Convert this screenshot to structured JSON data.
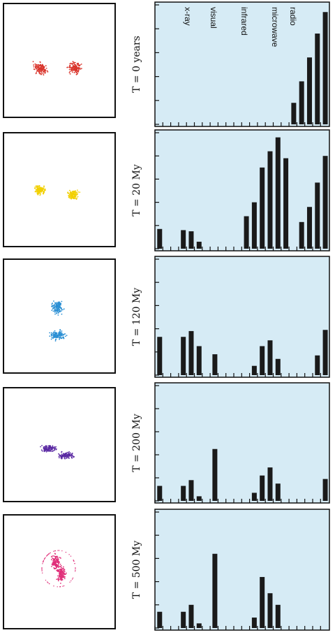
{
  "chart_data": [
    {
      "type": "bar",
      "title": "T = 0 years",
      "band_labels": [
        "x-ray",
        "visual",
        "infrared",
        "microwave",
        "radio"
      ],
      "categories": [
        null,
        null,
        null,
        null,
        null,
        null,
        null,
        null,
        null,
        null,
        null,
        null,
        null,
        null,
        null,
        null,
        null,
        null,
        null,
        null,
        null,
        null
      ],
      "values": [
        0,
        0,
        0,
        0,
        0,
        0,
        0,
        0,
        0,
        0,
        0,
        0,
        0,
        0,
        0,
        0,
        0,
        0.9,
        1.8,
        2.8,
        3.8,
        4.7
      ],
      "color": "#1a1a1a",
      "ylim": [
        0,
        5
      ],
      "yticks": [
        0,
        1,
        2,
        3,
        4,
        5
      ]
    },
    {
      "type": "bar",
      "title": "T = 20 My",
      "categories": [
        null,
        null,
        null,
        null,
        null,
        null,
        null,
        null,
        null,
        null,
        null,
        null,
        null,
        null,
        null,
        null,
        null,
        null,
        null,
        null,
        null,
        null
      ],
      "values": [
        0.85,
        0,
        0,
        0.8,
        0.75,
        0.3,
        0,
        0,
        0,
        0,
        0,
        1.4,
        2.0,
        3.5,
        4.2,
        4.8,
        3.9,
        0,
        1.15,
        1.8,
        2.85,
        4.0
      ],
      "color": "#1a1a1a",
      "ylim": [
        0,
        5
      ],
      "yticks": [
        0,
        1,
        2,
        3,
        4,
        5
      ]
    },
    {
      "type": "bar",
      "title": "T = 120 My",
      "categories": [
        null,
        null,
        null,
        null,
        null,
        null,
        null,
        null,
        null,
        null,
        null,
        null,
        null,
        null,
        null,
        null,
        null,
        null,
        null,
        null,
        null,
        null
      ],
      "values": [
        1.65,
        0,
        0,
        1.65,
        1.9,
        1.25,
        0,
        0.9,
        0,
        0,
        0,
        0,
        0.4,
        1.25,
        1.5,
        0.7,
        0,
        0,
        0,
        0,
        0.85,
        1.95
      ],
      "color": "#1a1a1a",
      "ylim": [
        0,
        5
      ],
      "yticks": [
        0,
        1,
        2,
        3,
        4,
        5
      ]
    },
    {
      "type": "bar",
      "title": "T = 200 My",
      "categories": [
        null,
        null,
        null,
        null,
        null,
        null,
        null,
        null,
        null,
        null,
        null,
        null,
        null,
        null,
        null,
        null,
        null,
        null,
        null,
        null,
        null,
        null
      ],
      "values": [
        0.65,
        0,
        0,
        0.65,
        0.9,
        0.2,
        0,
        2.25,
        0,
        0,
        0,
        0,
        0.35,
        1.1,
        1.45,
        0.75,
        0,
        0,
        0,
        0,
        0,
        0.95
      ],
      "color": "#1a1a1a",
      "ylim": [
        0,
        5
      ],
      "yticks": [
        0,
        1,
        2,
        3,
        4,
        5
      ]
    },
    {
      "type": "bar",
      "title": "T = 500 My",
      "categories": [
        null,
        null,
        null,
        null,
        null,
        null,
        null,
        null,
        null,
        null,
        null,
        null,
        null,
        null,
        null,
        null,
        null,
        null,
        null,
        null,
        null,
        null
      ],
      "values": [
        0.7,
        0,
        0,
        0.7,
        1.0,
        0.2,
        0,
        3.2,
        0,
        0,
        0,
        0,
        0.45,
        2.2,
        1.5,
        1.0,
        0,
        0,
        0,
        0,
        0,
        0
      ],
      "color": "#1a1a1a",
      "ylim": [
        0,
        5
      ],
      "yticks": [
        0,
        1,
        2,
        3,
        4,
        5
      ]
    }
  ]
}
